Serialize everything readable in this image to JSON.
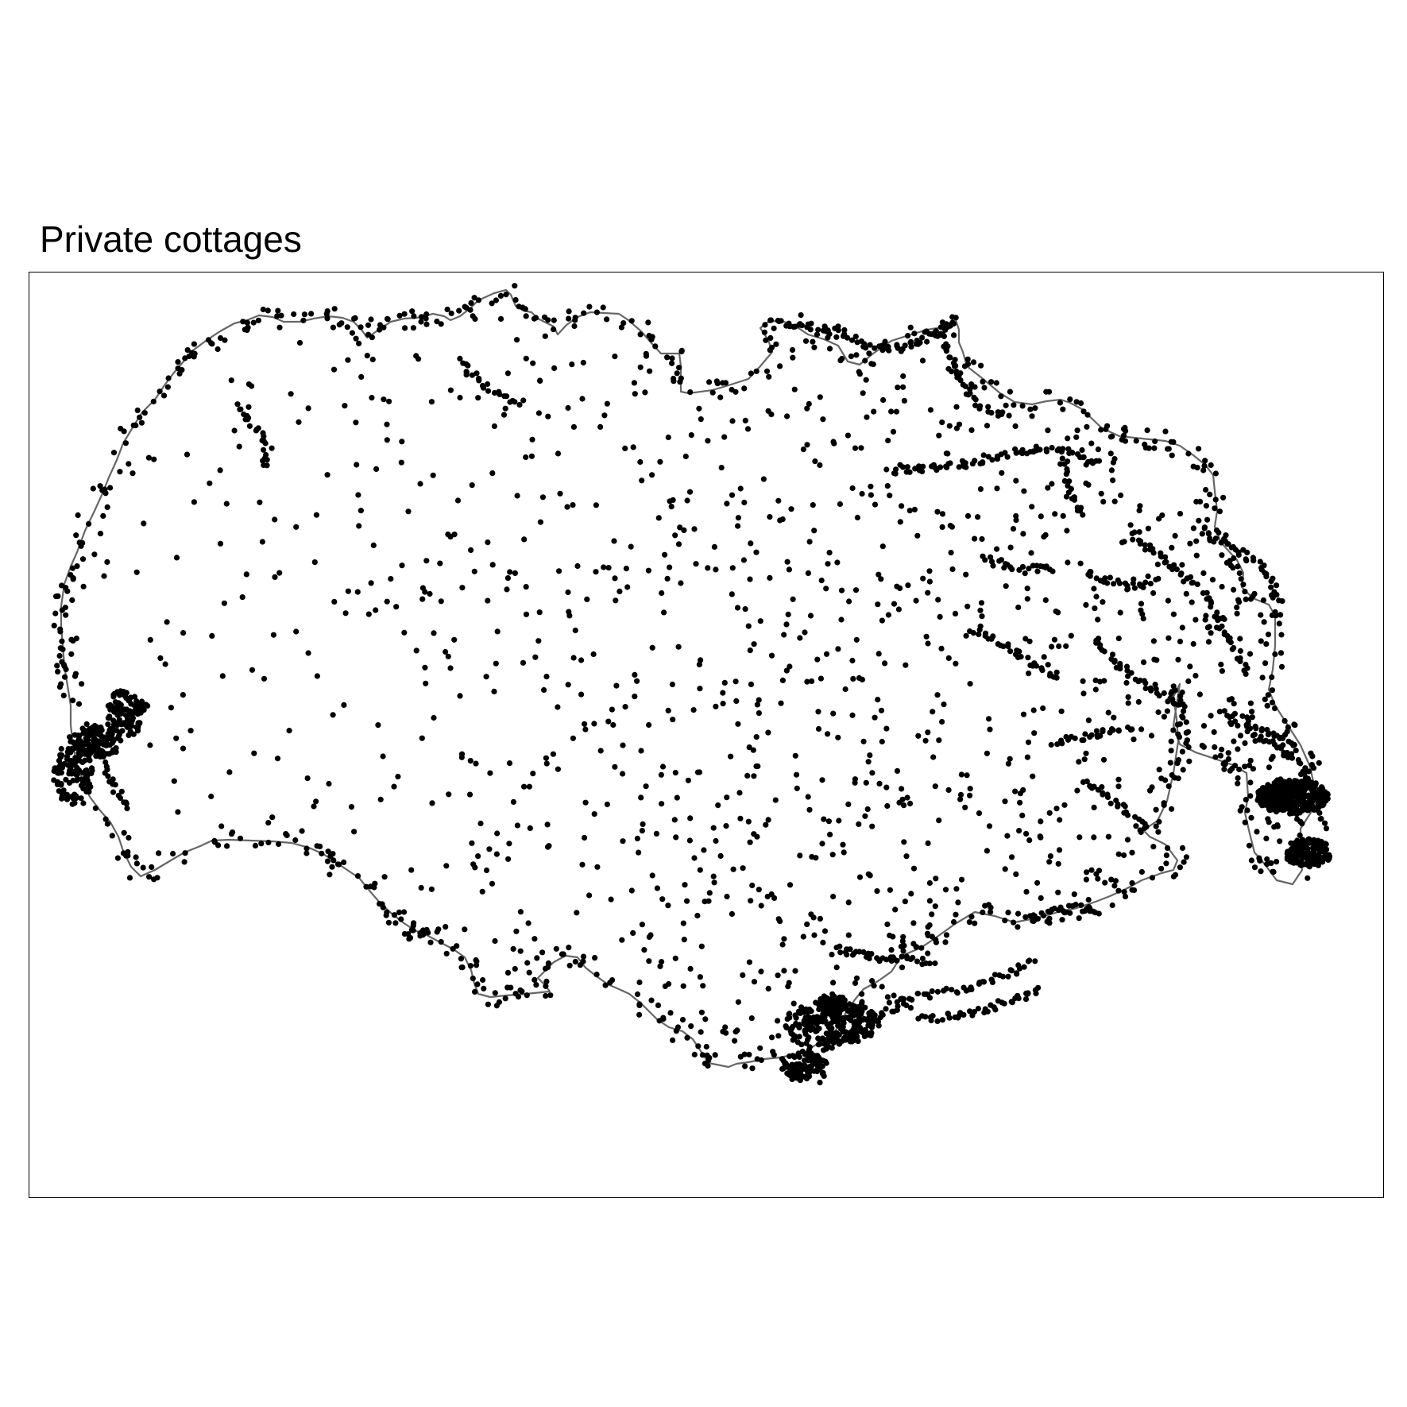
{
  "map": {
    "title": "Private cottages",
    "boundary_color": "#666666",
    "point_color": "#000000",
    "background_color": "#ffffff"
  }
}
